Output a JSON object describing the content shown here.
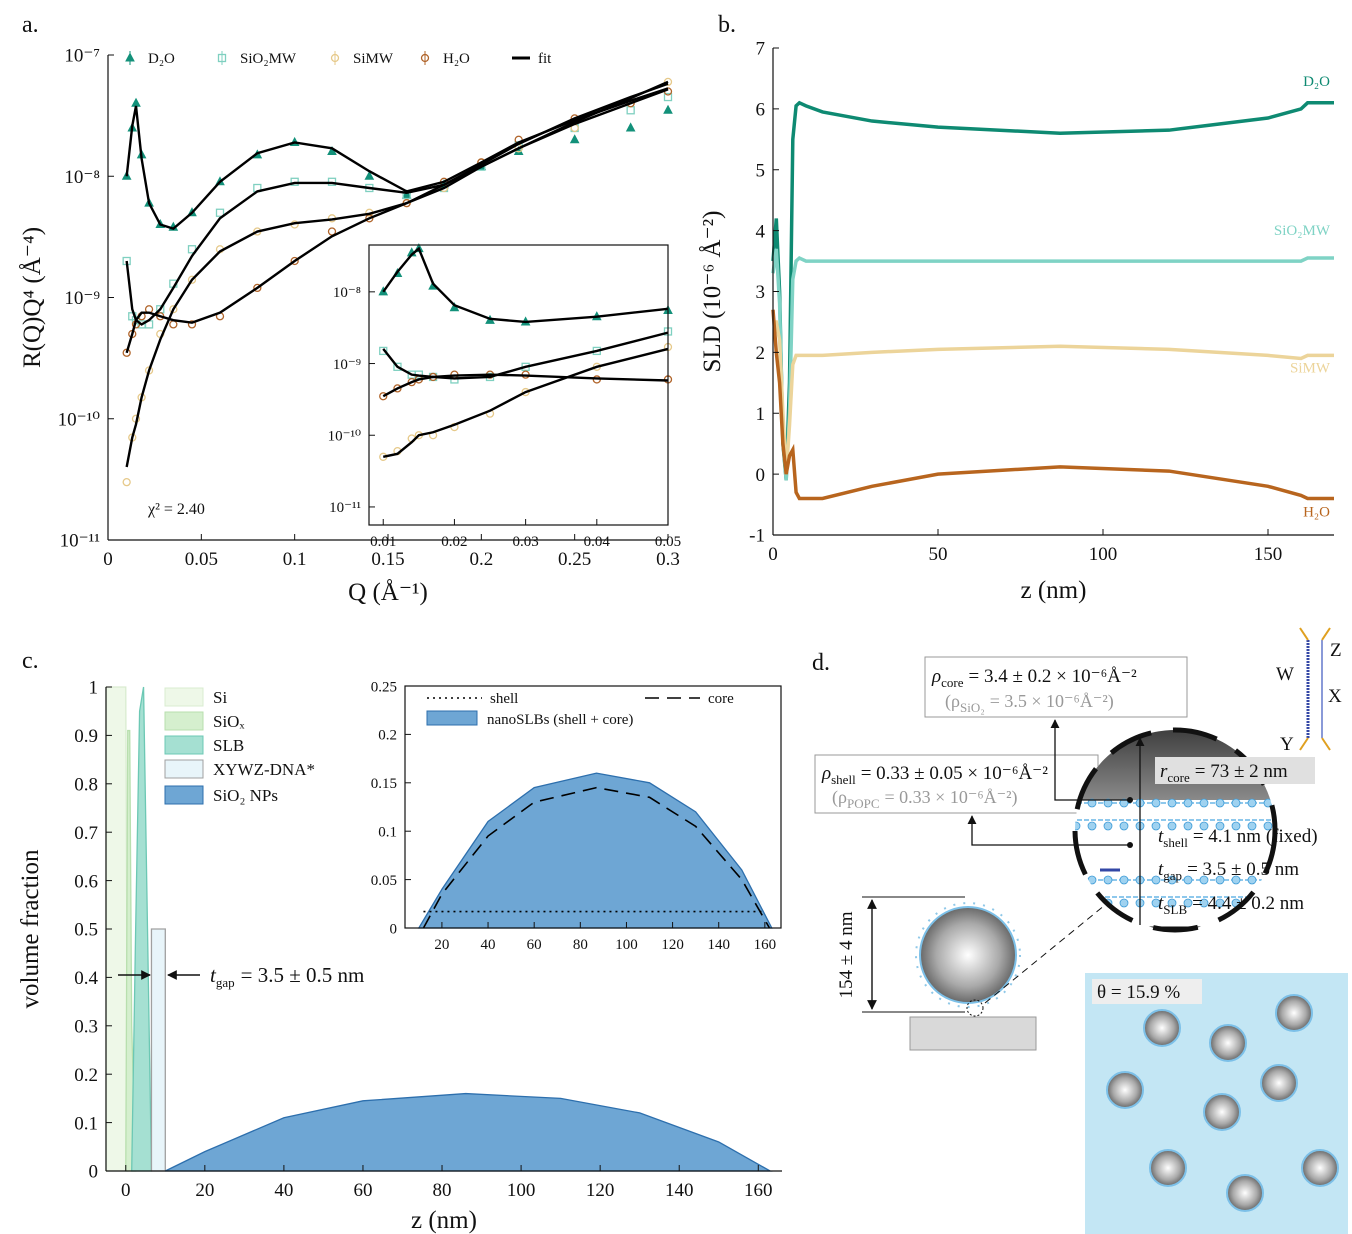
{
  "chart_data": [
    {
      "type": "scatter",
      "panel_label": "a.",
      "xlabel": "Q (Å⁻¹)",
      "ylabel": "R(Q)Q⁴ (Å⁻⁴)",
      "annotation": "χ² = 2.40",
      "xlim": [
        0,
        0.3
      ],
      "ylim": [
        1e-11,
        1e-07
      ],
      "log_y": true,
      "legend": "top",
      "xticks": [
        0,
        0.05,
        0.1,
        0.15,
        0.2,
        0.25,
        0.3
      ],
      "yticks": [
        {
          "value": 1e-11,
          "label": "10⁻¹¹"
        },
        {
          "value": 1e-10,
          "label": "10⁻¹⁰"
        },
        {
          "value": 1e-09,
          "label": "10⁻⁹"
        },
        {
          "value": 1e-08,
          "label": "10⁻⁸"
        },
        {
          "value": 1e-07,
          "label": "10⁻⁷"
        }
      ],
      "x": [
        0.01,
        0.013,
        0.015,
        0.018,
        0.022,
        0.028,
        0.035,
        0.045,
        0.06,
        0.08,
        0.1,
        0.12,
        0.14,
        0.16,
        0.18,
        0.2,
        0.22,
        0.25,
        0.28,
        0.3
      ],
      "series": [
        {
          "name": "D₂O",
          "color": "#13917a",
          "marker": "triangle",
          "values": [
            1e-08,
            2.5e-08,
            4e-08,
            1.5e-08,
            6e-09,
            4e-09,
            3.8e-09,
            5e-09,
            9e-09,
            1.5e-08,
            1.9e-08,
            1.6e-08,
            1e-08,
            7e-09,
            8.5e-09,
            1.2e-08,
            1.6e-08,
            2e-08,
            2.5e-08,
            3.5e-08
          ]
        },
        {
          "name": "SiO₂MW",
          "color": "#7fd0c0",
          "marker": "square",
          "values": [
            2e-09,
            7e-10,
            6.5e-10,
            6e-10,
            6e-10,
            8e-10,
            1.3e-09,
            2.5e-09,
            5e-09,
            8e-09,
            9e-09,
            9e-09,
            8e-09,
            7e-09,
            8e-09,
            1.2e-08,
            1.8e-08,
            2.5e-08,
            3.5e-08,
            4.5e-08
          ]
        },
        {
          "name": "SiMW",
          "color": "#e6c98a",
          "marker": "circle",
          "values": [
            3e-11,
            7e-11,
            1e-10,
            1.5e-10,
            2.5e-10,
            5e-10,
            8e-10,
            1.4e-09,
            2.5e-09,
            3.5e-09,
            4e-09,
            4.5e-09,
            5e-09,
            6e-09,
            8e-09,
            1.3e-08,
            1.7e-08,
            2.5e-08,
            4e-08,
            6e-08
          ]
        },
        {
          "name": "H₂O",
          "color": "#b0642a",
          "marker": "circle",
          "values": [
            3.5e-10,
            5e-10,
            6e-10,
            7e-10,
            8e-10,
            7e-10,
            6e-10,
            6e-10,
            7e-10,
            1.2e-09,
            2e-09,
            3.5e-09,
            4.5e-09,
            6e-09,
            9e-09,
            1.3e-08,
            2e-08,
            3e-08,
            4e-08,
            5e-08
          ]
        }
      ],
      "fit": {
        "name": "fit",
        "color": "#000000",
        "curves": [
          [
            1e-08,
            2.6e-08,
            3.8e-08,
            1.4e-08,
            6e-09,
            4e-09,
            3.7e-09,
            5e-09,
            9e-09,
            1.55e-08,
            1.9e-08,
            1.7e-08,
            1.1e-08,
            7.5e-09,
            9e-09,
            1.3e-08,
            1.9e-08,
            2.9e-08,
            4.2e-08,
            5.3e-08
          ],
          [
            2e-09,
            8e-10,
            6.5e-10,
            6e-10,
            6.5e-10,
            8e-10,
            1.2e-09,
            2.2e-09,
            4.5e-09,
            7.5e-09,
            8.8e-09,
            8.8e-09,
            8e-09,
            7.3e-09,
            8.5e-09,
            1.2e-08,
            1.7e-08,
            2.7e-08,
            4e-08,
            5.2e-08
          ],
          [
            4e-11,
            7e-11,
            9e-11,
            1.5e-10,
            2.5e-10,
            4.5e-10,
            8e-10,
            1.4e-09,
            2.4e-09,
            3.5e-09,
            4.1e-09,
            4.4e-09,
            4.9e-09,
            6e-09,
            8e-09,
            1.2e-08,
            1.7e-08,
            2.8e-08,
            4.4e-08,
            6e-08
          ],
          [
            3.5e-10,
            5e-10,
            6.5e-10,
            7.5e-10,
            7.5e-10,
            7e-10,
            6.5e-10,
            6.2e-10,
            7.5e-10,
            1.2e-09,
            2e-09,
            3.2e-09,
            4.5e-09,
            6e-09,
            8.5e-09,
            1.25e-08,
            1.85e-08,
            3e-08,
            4.5e-08,
            5.8e-08
          ]
        ]
      }
    },
    {
      "type": "scatter",
      "xlim": [
        0.008,
        0.05
      ],
      "ylim": [
        5.6e-12,
        4.5e-08
      ],
      "log_y": true,
      "xticks": [
        0.01,
        0.02,
        0.03,
        0.04,
        0.05
      ],
      "yticks": [
        {
          "value": 1e-11,
          "label": "10⁻¹¹"
        },
        {
          "value": 1e-10,
          "label": "10⁻¹⁰"
        },
        {
          "value": 1e-09,
          "label": "10⁻⁹"
        },
        {
          "value": 1e-08,
          "label": "10⁻⁸"
        }
      ],
      "x": [
        0.01,
        0.012,
        0.014,
        0.015,
        0.017,
        0.02,
        0.025,
        0.03,
        0.04,
        0.05
      ],
      "series": [
        {
          "color": "#13917a",
          "marker": "triangle",
          "values": [
            1e-08,
            1.8e-08,
            3.5e-08,
            4e-08,
            1.2e-08,
            6e-09,
            4e-09,
            3.8e-09,
            4.5e-09,
            5.5e-09
          ]
        },
        {
          "color": "#7fd0c0",
          "marker": "square",
          "values": [
            1.5e-09,
            9e-10,
            7e-10,
            7e-10,
            6.5e-10,
            6e-10,
            6.5e-10,
            9e-10,
            1.5e-09,
            2.8e-09
          ]
        },
        {
          "color": "#e6c98a",
          "marker": "circle",
          "values": [
            5e-11,
            6e-11,
            9e-11,
            1e-10,
            1e-10,
            1.3e-10,
            2e-10,
            4e-10,
            9e-10,
            1.7e-09
          ]
        },
        {
          "color": "#b0642a",
          "marker": "circle",
          "values": [
            3.5e-10,
            4.5e-10,
            5.5e-10,
            6e-10,
            6.5e-10,
            7e-10,
            7e-10,
            7e-10,
            6e-10,
            6e-10
          ]
        }
      ],
      "fit": {
        "color": "#000000",
        "curves": [
          [
            1e-08,
            1.9e-08,
            3.3e-08,
            4e-08,
            1.3e-08,
            6.5e-09,
            4.2e-09,
            3.8e-09,
            4.5e-09,
            5.8e-09
          ],
          [
            1.6e-09,
            9e-10,
            7e-10,
            6.8e-10,
            6.5e-10,
            6.2e-10,
            6.5e-10,
            9e-10,
            1.5e-09,
            2.7e-09
          ],
          [
            5e-11,
            5.5e-11,
            8e-11,
            1e-10,
            1.1e-10,
            1.4e-10,
            2.2e-10,
            4e-10,
            9e-10,
            1.6e-09
          ],
          [
            3.5e-10,
            4.5e-10,
            5.5e-10,
            6e-10,
            6.5e-10,
            6.8e-10,
            7e-10,
            6.8e-10,
            6.2e-10,
            5.8e-10
          ]
        ]
      }
    },
    {
      "type": "line",
      "panel_label": "b.",
      "xlabel": "z (nm)",
      "ylabel": "SLD (10⁻⁶ Å⁻²)",
      "xlim": [
        0,
        170
      ],
      "ylim": [
        -1,
        7
      ],
      "xticks": [
        0,
        50,
        100,
        150
      ],
      "yticks": [
        -1,
        0,
        1,
        2,
        3,
        4,
        5,
        6,
        7
      ],
      "x": [
        0,
        1,
        2,
        3,
        4,
        5,
        6,
        7,
        8,
        10,
        15,
        30,
        50,
        87,
        120,
        150,
        160,
        162,
        165,
        170
      ],
      "series": [
        {
          "name": "D₂O",
          "color": "#0e8a72",
          "values": [
            3.5,
            4.2,
            3.0,
            0.5,
            -0.1,
            1.5,
            5.5,
            6.05,
            6.1,
            6.05,
            5.95,
            5.8,
            5.7,
            5.6,
            5.65,
            5.85,
            6.0,
            6.1,
            6.1,
            6.1
          ]
        },
        {
          "name": "SiO₂MW",
          "color": "#7fd3c5",
          "values": [
            3.3,
            3.7,
            2.8,
            0.6,
            -0.1,
            1.0,
            3.2,
            3.5,
            3.55,
            3.5,
            3.5,
            3.5,
            3.5,
            3.5,
            3.5,
            3.5,
            3.5,
            3.55,
            3.55,
            3.55
          ]
        },
        {
          "name": "SiMW",
          "color": "#ecd49a",
          "values": [
            2.5,
            2.5,
            2.2,
            1.0,
            0,
            0.8,
            1.8,
            1.95,
            1.95,
            1.95,
            1.95,
            2.0,
            2.05,
            2.1,
            2.05,
            1.95,
            1.9,
            1.95,
            1.95,
            1.95
          ]
        },
        {
          "name": "H₂O",
          "color": "#b8651e",
          "values": [
            2.7,
            2.0,
            1.5,
            0.5,
            0.0,
            0.3,
            0.4,
            -0.3,
            -0.4,
            -0.4,
            -0.4,
            -0.2,
            0.0,
            0.12,
            0.05,
            -0.2,
            -0.35,
            -0.4,
            -0.4,
            -0.4
          ]
        }
      ]
    },
    {
      "type": "area",
      "panel_label": "c.",
      "xlabel": "z (nm)",
      "ylabel": "volume fraction",
      "legend": "top-left",
      "xlim": [
        -5,
        166
      ],
      "ylim": [
        0,
        1
      ],
      "xticks": [
        0,
        20,
        40,
        60,
        80,
        100,
        120,
        140,
        160
      ],
      "yticks": [
        0,
        0.1,
        0.2,
        0.3,
        0.4,
        0.5,
        0.6,
        0.7,
        0.8,
        0.9,
        1
      ],
      "series": [
        {
          "name": "Si",
          "color": "#eef8e8",
          "edge": "#d9ecd0",
          "x": [
            -5,
            -5,
            0,
            0.5
          ],
          "values": [
            0,
            1,
            1,
            0
          ]
        },
        {
          "name": "SiOₓ",
          "color": "#d5efce",
          "edge": "#b8dfae",
          "x": [
            0,
            0.5,
            1,
            1.5,
            2.5
          ],
          "values": [
            0,
            0.91,
            0.91,
            0.3,
            0
          ]
        },
        {
          "name": "SLB",
          "color": "#a5e0d2",
          "edge": "#6cc8b4",
          "x": [
            1.5,
            2.5,
            3.5,
            4.5,
            5.5,
            6.5
          ],
          "values": [
            0,
            0.5,
            0.95,
            1,
            0.5,
            0
          ]
        },
        {
          "name": "XYWZ-DNA*",
          "color": "#e8f5fa",
          "edge": "#a0a0a0",
          "x": [
            6.5,
            6.5,
            10,
            10
          ],
          "values": [
            0,
            0.5,
            0.5,
            0
          ]
        },
        {
          "name": "SiO₂ NPs",
          "color": "#6ea6d4",
          "edge": "#2d6fad",
          "x": [
            10,
            20,
            40,
            60,
            86,
            110,
            130,
            150,
            163
          ],
          "values": [
            0,
            0.04,
            0.11,
            0.145,
            0.16,
            0.15,
            0.12,
            0.06,
            0
          ]
        }
      ]
    },
    {
      "type": "area",
      "xlim": [
        4,
        167
      ],
      "ylim": [
        0,
        0.25
      ],
      "legend": "top",
      "xticks": [
        20,
        40,
        60,
        80,
        100,
        120,
        140,
        160
      ],
      "yticks": [
        0,
        0.05,
        0.1,
        0.15,
        0.2,
        0.25
      ],
      "series": [
        {
          "name": "shell",
          "style": "dotted",
          "color": "#000000",
          "x": [
            12,
            160
          ],
          "values": [
            0.017,
            0.017
          ]
        },
        {
          "name": "core",
          "style": "dashed",
          "color": "#000000",
          "x": [
            12,
            20,
            40,
            60,
            87,
            110,
            130,
            150,
            162
          ],
          "values": [
            0,
            0.035,
            0.095,
            0.13,
            0.145,
            0.135,
            0.105,
            0.05,
            0
          ]
        },
        {
          "name": "nanoSLBs (shell + core)",
          "color": "#6ea6d4",
          "edge": "#2d6fad",
          "x": [
            10,
            20,
            40,
            60,
            87,
            110,
            130,
            150,
            163
          ],
          "values": [
            0,
            0.04,
            0.11,
            0.145,
            0.16,
            0.15,
            0.12,
            0.06,
            0
          ]
        }
      ]
    }
  ],
  "gap_note": {
    "main": "t",
    "sub": "gap",
    "rest": "= 3.5 ± 0.5 nm"
  },
  "diagram": {
    "panel_label": "d.",
    "rho_core": {
      "main": "ρ",
      "sub": "core",
      "rest": "= 3.4 ± 0.2 × 10⁻⁶Å⁻²"
    },
    "rho_sio2": {
      "main": "(ρ",
      "sub": "SiO₂",
      "rest": "= 3.5 × 10⁻⁶Å⁻²)"
    },
    "rho_shell": {
      "main": "ρ",
      "sub": "shell",
      "rest": "= 0.33 ± 0.05 × 10⁻⁶Å⁻²"
    },
    "rho_popc": {
      "main": "(ρ",
      "sub": "POPC",
      "rest": "= 0.33 × 10⁻⁶Å⁻²)"
    },
    "r_core": {
      "main": "r",
      "sub": "core",
      "rest": "= 73 ± 2 nm"
    },
    "t_shell": {
      "main": "t",
      "sub": "shell",
      "rest": "= 4.1 nm (fixed)"
    },
    "t_gap": {
      "main": "t",
      "sub": "gap",
      "rest": "= 3.5 ± 0.5 nm"
    },
    "t_slb": {
      "main": "t",
      "sub": "SLB",
      "rest": "= 4.4 ± 0.2 nm"
    },
    "diameter": "154 ± 4 nm",
    "coverage": "θ = 15.9 %",
    "strands": {
      "w": "W",
      "x": "X",
      "y": "Y",
      "z": "Z"
    }
  }
}
